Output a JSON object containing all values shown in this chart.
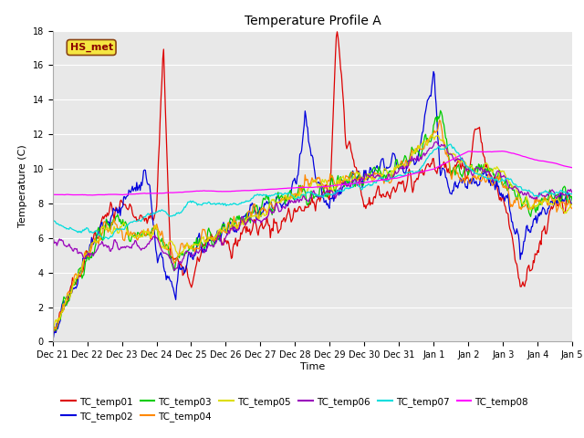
{
  "title": "Temperature Profile A",
  "xlabel": "Time",
  "ylabel": "Temperature (C)",
  "ylim": [
    0,
    18
  ],
  "annotation_text": "HS_met",
  "series_colors": {
    "TC_temp01": "#dd0000",
    "TC_temp02": "#0000dd",
    "TC_temp03": "#00cc00",
    "TC_temp04": "#ff8800",
    "TC_temp05": "#dddd00",
    "TC_temp06": "#9900bb",
    "TC_temp07": "#00dddd",
    "TC_temp08": "#ff00ff"
  },
  "legend_order": [
    "TC_temp01",
    "TC_temp02",
    "TC_temp03",
    "TC_temp04",
    "TC_temp05",
    "TC_temp06",
    "TC_temp07",
    "TC_temp08"
  ],
  "tick_labels": [
    "Dec 21",
    "Dec 22",
    "Dec 23",
    "Dec 24",
    "Dec 25",
    "Dec 26",
    "Dec 27",
    "Dec 28",
    "Dec 29",
    "Dec 30",
    "Dec 31",
    "Jan 1",
    "Jan 2",
    "Jan 3",
    "Jan 4",
    "Jan 5"
  ],
  "n_points": 600
}
